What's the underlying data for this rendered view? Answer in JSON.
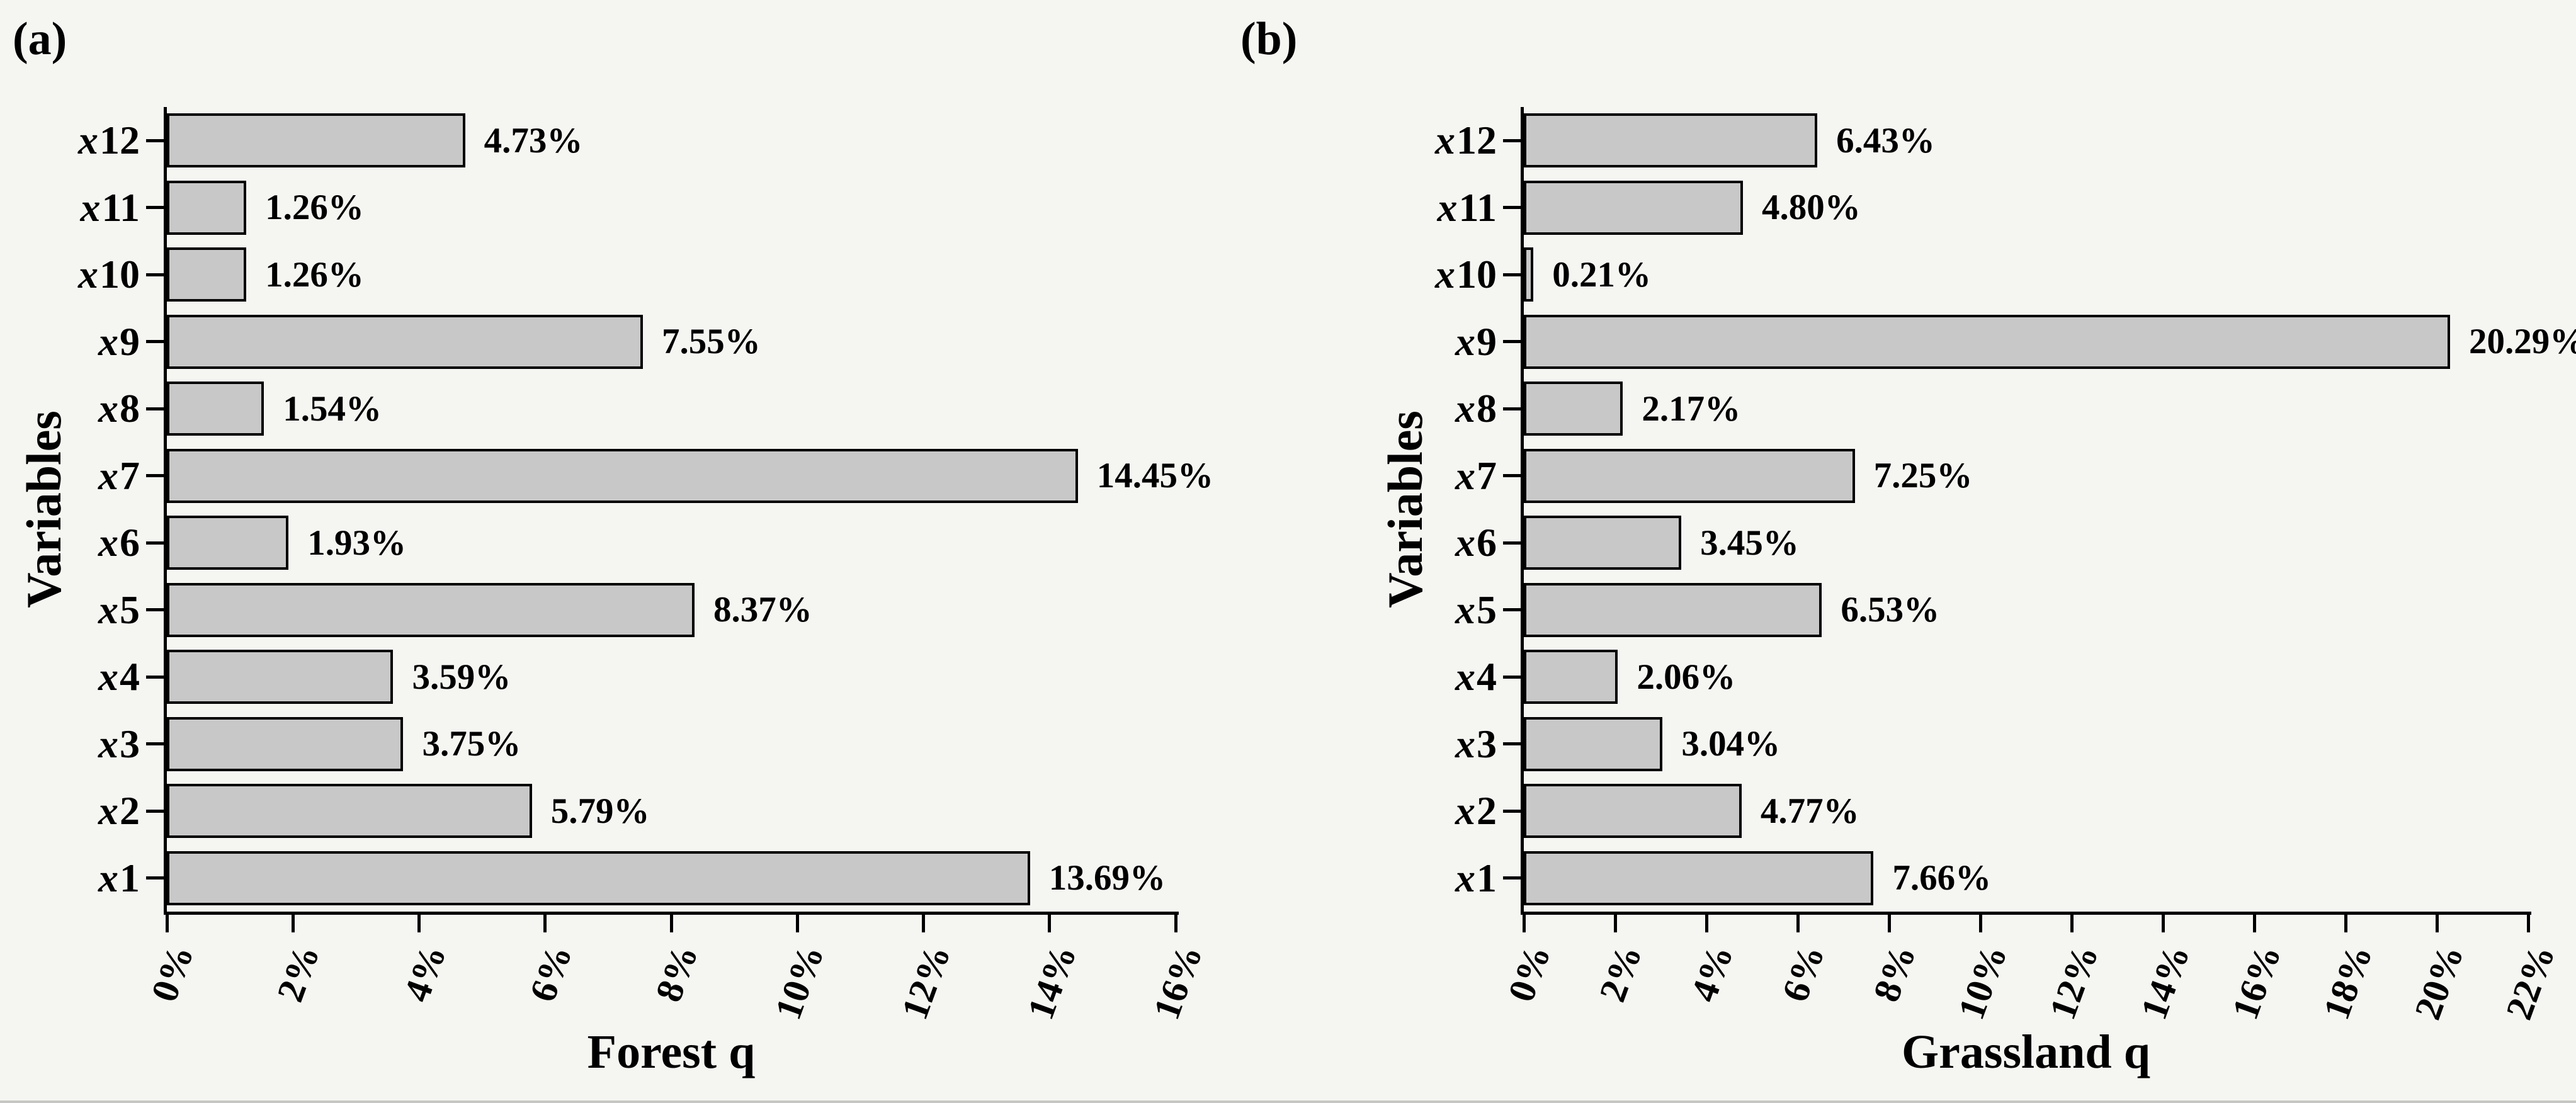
{
  "figure": {
    "background": "#f5f5f2",
    "bar_fill": "#c8c8c8",
    "bar_border": "#000000",
    "axis_color": "#000000"
  },
  "chart_data": [
    {
      "type": "bar",
      "orientation": "horizontal",
      "panel_label": "(a)",
      "xlabel": "Forest q",
      "ylabel": "Variables",
      "xlim": [
        0,
        16
      ],
      "xtick_step": 2,
      "xtick_labels": [
        "0%",
        "2%",
        "4%",
        "6%",
        "8%",
        "10%",
        "12%",
        "14%",
        "16%"
      ],
      "grid": false,
      "legend": null,
      "categories_top_to_bottom": [
        "x12",
        "x11",
        "x10",
        "x9",
        "x8",
        "x7",
        "x6",
        "x5",
        "x4",
        "x3",
        "x2",
        "x1"
      ],
      "values": [
        4.73,
        1.26,
        1.26,
        7.55,
        1.54,
        14.45,
        1.93,
        8.37,
        3.59,
        3.75,
        5.79,
        13.69
      ],
      "value_labels": [
        "4.73%",
        "1.26%",
        "1.26%",
        "7.55%",
        "1.54%",
        "14.45%",
        "1.93%",
        "8.37%",
        "3.59%",
        "3.75%",
        "5.79%",
        "13.69%"
      ]
    },
    {
      "type": "bar",
      "orientation": "horizontal",
      "panel_label": "(b)",
      "xlabel": "Grassland q",
      "ylabel": "Variables",
      "xlim": [
        0,
        22
      ],
      "xtick_step": 2,
      "xtick_labels": [
        "0%",
        "2%",
        "4%",
        "6%",
        "8%",
        "10%",
        "12%",
        "14%",
        "16%",
        "18%",
        "20%",
        "22%"
      ],
      "grid": false,
      "legend": null,
      "categories_top_to_bottom": [
        "x12",
        "x11",
        "x10",
        "x9",
        "x8",
        "x7",
        "x6",
        "x5",
        "x4",
        "x3",
        "x2",
        "x1"
      ],
      "values": [
        6.43,
        4.8,
        0.21,
        20.29,
        2.17,
        7.25,
        3.45,
        6.53,
        2.06,
        3.04,
        4.77,
        7.66
      ],
      "value_labels": [
        "6.43%",
        "4.80%",
        "0.21%",
        "20.29%",
        "2.17%",
        "7.25%",
        "3.45%",
        "6.53%",
        "2.06%",
        "3.04%",
        "4.77%",
        "7.66%"
      ]
    }
  ]
}
